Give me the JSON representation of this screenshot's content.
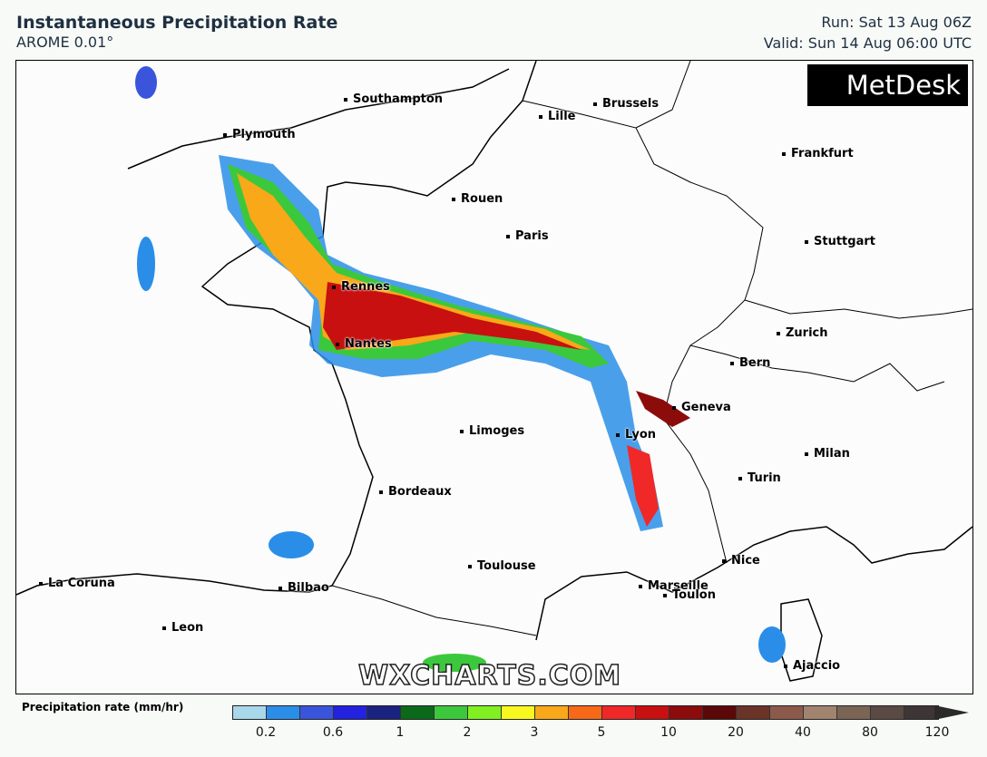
{
  "header": {
    "title": "Instantaneous Precipitation Rate",
    "subtitle": "AROME 0.01°",
    "run": "Run: Sat 13 Aug 06Z",
    "valid": "Valid: Sun 14 Aug 06:00 UTC"
  },
  "logo": "MetDesk",
  "watermark": "WXCHARTS.COM",
  "cities": [
    {
      "name": "Southampton"
    },
    {
      "name": "Brussels"
    },
    {
      "name": "Lille"
    },
    {
      "name": "Plymouth"
    },
    {
      "name": "Frankfurt"
    },
    {
      "name": "Rouen"
    },
    {
      "name": "Paris"
    },
    {
      "name": "Stuttgart"
    },
    {
      "name": "Rennes"
    },
    {
      "name": "Zurich"
    },
    {
      "name": "Nantes"
    },
    {
      "name": "Bern"
    },
    {
      "name": "Geneva"
    },
    {
      "name": "Limoges"
    },
    {
      "name": "Lyon"
    },
    {
      "name": "Milan"
    },
    {
      "name": "Turin"
    },
    {
      "name": "Bordeaux"
    },
    {
      "name": "Nice"
    },
    {
      "name": "Toulouse"
    },
    {
      "name": "La Coruna"
    },
    {
      "name": "Bilbao"
    },
    {
      "name": "Marseille"
    },
    {
      "name": "Toulon"
    },
    {
      "name": "Leon"
    },
    {
      "name": "Ajaccio"
    }
  ],
  "legend": {
    "title": "Precipitation rate (mm/hr)",
    "ticks": [
      "0.2",
      "0.6",
      "1",
      "2",
      "3",
      "5",
      "10",
      "20",
      "40",
      "80",
      "120"
    ],
    "colors": [
      "#a8d8ea",
      "#2a8ee8",
      "#3a55dc",
      "#2222e0",
      "#1a2380",
      "#0a6a1a",
      "#3cc83c",
      "#80f020",
      "#f8f820",
      "#f8a818",
      "#f86818",
      "#f02828",
      "#c81010",
      "#8c0c0c",
      "#5a0808",
      "#6a3428",
      "#8c5a4a",
      "#a08470",
      "#7a6454",
      "#5a4a44",
      "#3e3636"
    ]
  }
}
